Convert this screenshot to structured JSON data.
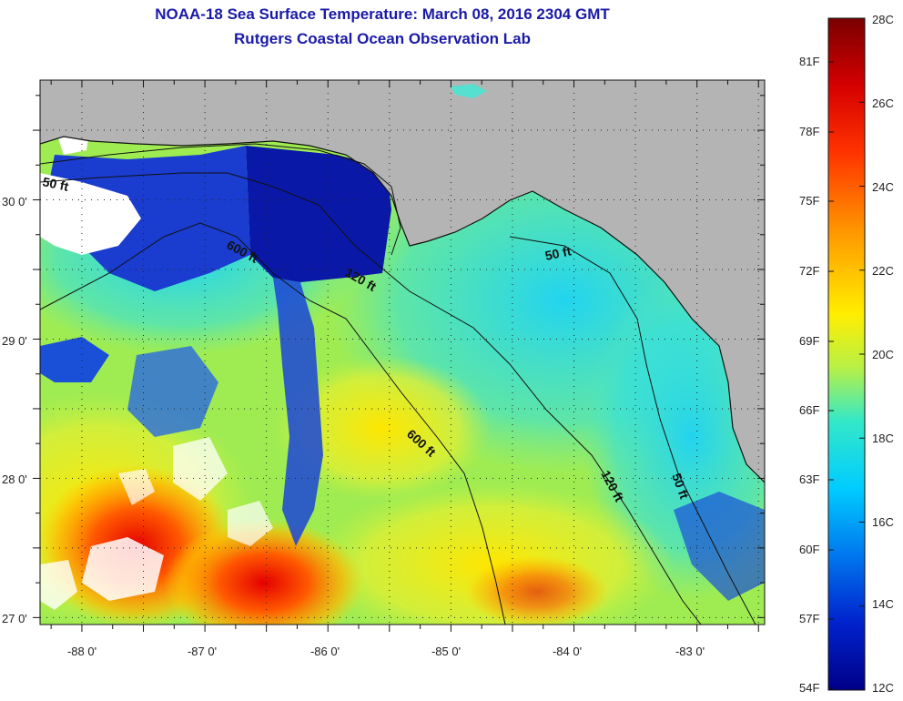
{
  "title": "NOAA-18 Sea Surface Temperature:  March 08, 2016 2304 GMT",
  "subtitle": "Rutgers Coastal Ocean Observation Lab",
  "map": {
    "lat_labels": [
      "30 0'",
      "29 0'",
      "28 0'",
      "27 0'"
    ],
    "lat_values": [
      30,
      29,
      28,
      27
    ],
    "lon_labels": [
      "-88 0'",
      "-87 0'",
      "-86 0'",
      "-85 0'",
      "-84 0'",
      "-83 0'"
    ],
    "lon_values": [
      -88,
      -87,
      -86,
      -85,
      -84,
      -83
    ],
    "lon_range": [
      -88.34,
      -82.45
    ],
    "lat_range": [
      26.95,
      30.86
    ],
    "depth_contours": [
      "50 ft",
      "120 ft",
      "600 ft",
      "600 ft",
      "50 ft",
      "120 ft",
      "50 ft"
    ]
  },
  "colorbar": {
    "celsius": [
      "28C",
      "26C",
      "24C",
      "22C",
      "20C",
      "18C",
      "16C",
      "14C",
      "12C"
    ],
    "fahrenheit": [
      "81F",
      "78F",
      "75F",
      "72F",
      "69F",
      "66F",
      "63F",
      "60F",
      "57F",
      "54F"
    ],
    "colors": [
      "#7a0000",
      "#d40000",
      "#ff3300",
      "#ff9900",
      "#ffee00",
      "#b8f046",
      "#33e8c8",
      "#00ccff",
      "#0077ee",
      "#0022cc",
      "#000088"
    ]
  },
  "colors": {
    "land": "#b4b4b4",
    "cloud": "#ffffff",
    "title": "#1a1aa8"
  }
}
